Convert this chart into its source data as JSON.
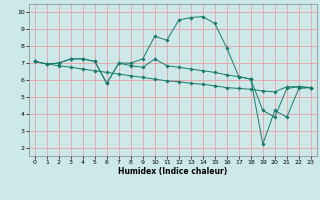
{
  "xlabel": "Humidex (Indice chaleur)",
  "background_color": "#cce8e8",
  "grid_color": "#e8a0a0",
  "line_color": "#1a7a6a",
  "xlim": [
    -0.5,
    23.5
  ],
  "ylim": [
    1.5,
    10.5
  ],
  "xticks": [
    0,
    1,
    2,
    3,
    4,
    5,
    6,
    7,
    8,
    9,
    10,
    11,
    12,
    13,
    14,
    15,
    16,
    17,
    18,
    19,
    20,
    21,
    22,
    23
  ],
  "yticks": [
    2,
    3,
    4,
    5,
    6,
    7,
    8,
    9,
    10
  ],
  "line1_x": [
    0,
    1,
    2,
    3,
    4,
    5,
    6,
    7,
    8,
    9,
    10,
    11,
    12,
    13,
    14,
    15,
    16,
    17,
    18,
    19,
    20,
    21,
    22,
    23
  ],
  "line1_y": [
    7.1,
    6.95,
    7.0,
    7.25,
    7.25,
    7.1,
    5.8,
    7.0,
    7.0,
    7.25,
    8.6,
    8.35,
    9.55,
    9.7,
    9.75,
    9.35,
    7.9,
    6.2,
    6.05,
    4.2,
    3.8,
    5.5,
    5.6,
    5.55
  ],
  "line2_x": [
    0,
    1,
    2,
    3,
    4,
    5,
    6,
    7,
    8,
    9,
    10,
    11,
    12,
    13,
    14,
    15,
    16,
    17,
    18,
    19,
    20,
    21,
    22,
    23
  ],
  "line2_y": [
    7.1,
    6.95,
    6.85,
    6.75,
    6.65,
    6.55,
    6.45,
    6.35,
    6.25,
    6.15,
    6.05,
    5.95,
    5.9,
    5.8,
    5.75,
    5.65,
    5.55,
    5.5,
    5.45,
    5.35,
    5.3,
    5.6,
    5.6,
    5.55
  ],
  "line3_x": [
    0,
    1,
    2,
    3,
    4,
    5,
    6,
    7,
    8,
    9,
    10,
    11,
    12,
    13,
    14,
    15,
    16,
    17,
    18,
    19,
    20,
    21,
    22,
    23
  ],
  "line3_y": [
    7.1,
    6.95,
    7.0,
    7.25,
    7.25,
    7.1,
    5.8,
    7.0,
    6.85,
    6.75,
    7.25,
    6.85,
    6.75,
    6.65,
    6.55,
    6.45,
    6.3,
    6.2,
    6.05,
    2.2,
    4.2,
    3.8,
    5.5,
    5.55
  ]
}
